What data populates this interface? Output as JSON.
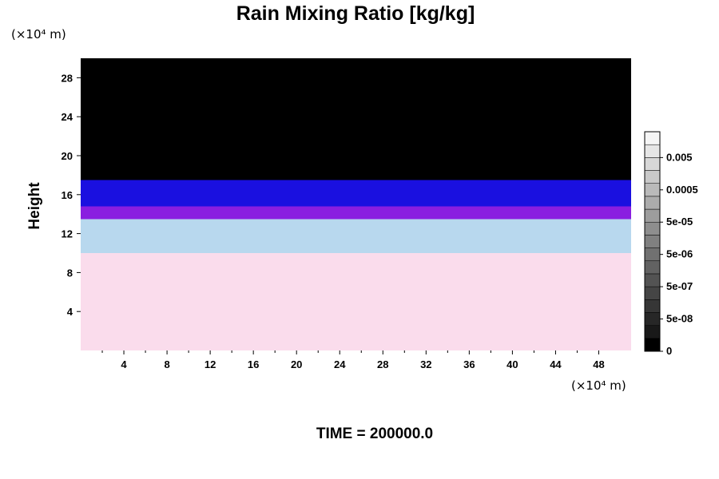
{
  "chart_data": {
    "type": "heatmap",
    "title": "Rain Mixing Ratio [kg/kg]",
    "ylabel": "Height",
    "x_unit": "(×10⁴ m)",
    "y_unit": "(×10⁴ m)",
    "xlim": [
      0,
      51
    ],
    "ylim": [
      0,
      30
    ],
    "x_ticks": [
      "4",
      "8",
      "12",
      "16",
      "20",
      "24",
      "28",
      "32",
      "36",
      "40",
      "44",
      "48"
    ],
    "y_ticks": [
      "4",
      "8",
      "12",
      "16",
      "20",
      "24",
      "28"
    ],
    "footer": "TIME = 200000.0",
    "colorbar": {
      "labels": [
        "0",
        "5e-08",
        "5e-07",
        "5e-06",
        "5e-05",
        "0.0005",
        "0.005"
      ],
      "n_levels": 17
    },
    "layers": [
      {
        "band": "no-rain",
        "y_from": 0,
        "y_to": 10,
        "color": "#fadcec"
      },
      {
        "band": "light-blue",
        "y_from": 10,
        "y_to": 13.5,
        "color": "#b8d8ee"
      },
      {
        "band": "violet",
        "y_from": 13.5,
        "y_to": 14.8,
        "color": "#8a1ee0"
      },
      {
        "band": "blue",
        "y_from": 14.8,
        "y_to": 17.5,
        "color": "#1a10e0"
      },
      {
        "band": "top",
        "y_from": 17.5,
        "y_to": 30,
        "color": "#000000"
      }
    ],
    "colors": {
      "background": "#ffffff",
      "plot_top": "#000000"
    }
  }
}
